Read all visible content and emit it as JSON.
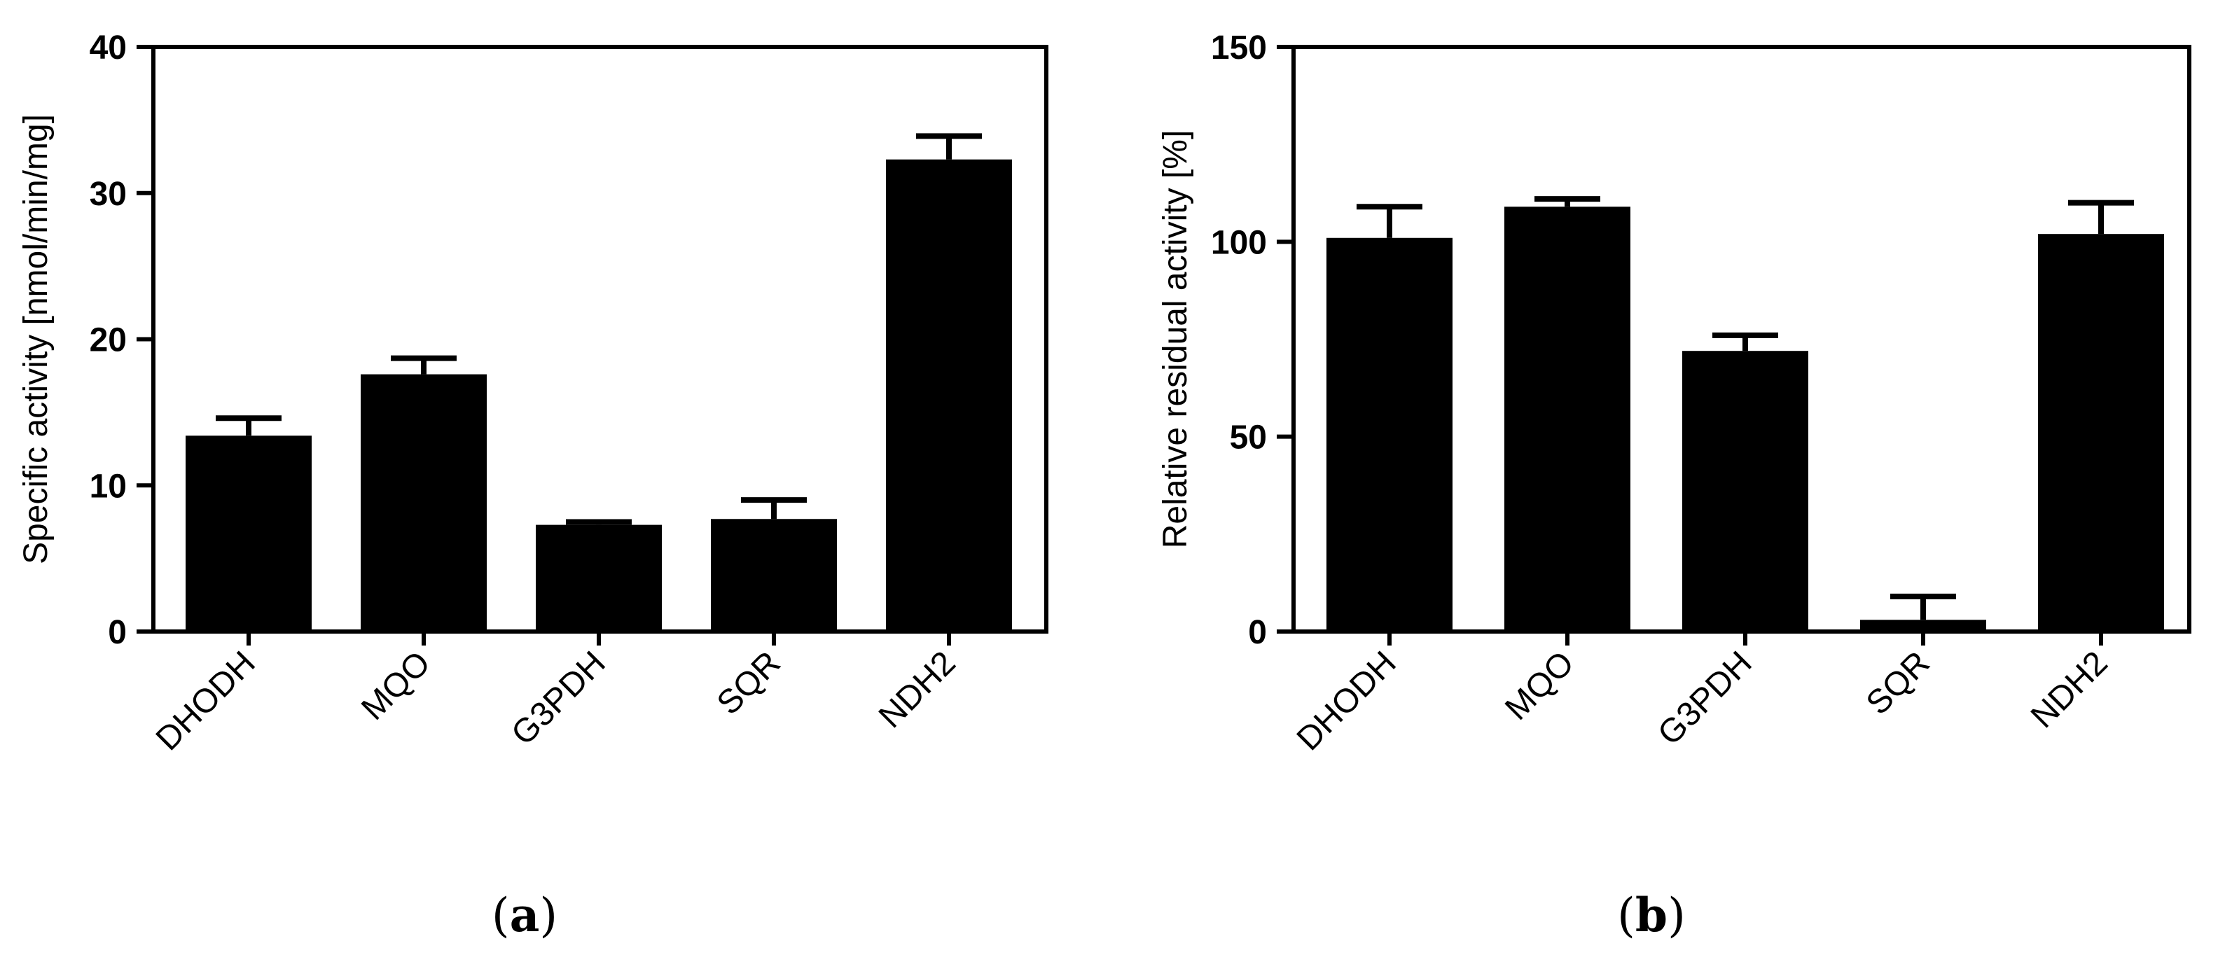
{
  "panels": [
    {
      "label_open": "(",
      "label_letter": "a",
      "label_close": ")"
    },
    {
      "label_open": "(",
      "label_letter": "b",
      "label_close": ")"
    }
  ],
  "chart_data": [
    {
      "type": "bar",
      "categories": [
        "DHODH",
        "MQO",
        "G3PDH",
        "SQR",
        "NDH2"
      ],
      "values": [
        13.4,
        17.6,
        7.3,
        7.7,
        32.3
      ],
      "errors": [
        1.2,
        1.1,
        0.2,
        1.3,
        1.6
      ],
      "ylabel": "Specific activity [nmol/min/mg]",
      "ylim": [
        0,
        40
      ],
      "yticks": [
        0,
        10,
        20,
        30,
        40
      ],
      "bar_color": "#000000"
    },
    {
      "type": "bar",
      "categories": [
        "DHODH",
        "MQO",
        "G3PDH",
        "SQR",
        "NDH2"
      ],
      "values": [
        101,
        109,
        72,
        3,
        102
      ],
      "errors": [
        8,
        2,
        4,
        6,
        8
      ],
      "ylabel": "Relative residual activity [%]",
      "ylim": [
        0,
        150
      ],
      "yticks": [
        0,
        50,
        100,
        150
      ],
      "bar_color": "#000000"
    }
  ]
}
